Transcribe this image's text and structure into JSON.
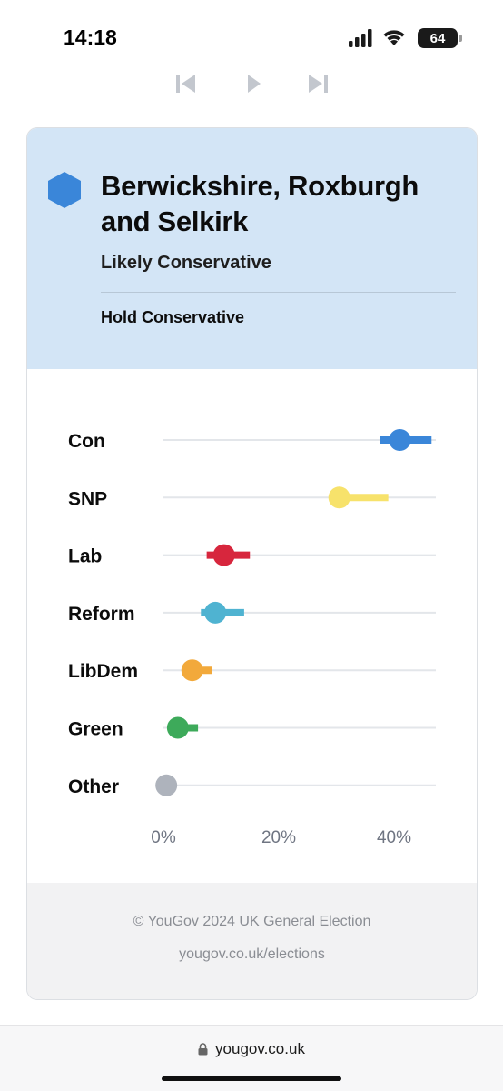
{
  "status_bar": {
    "time": "14:18",
    "battery": "64"
  },
  "controls": {
    "first_icon": "skip-to-first-icon",
    "play_icon": "play-icon",
    "last_icon": "skip-to-last-icon"
  },
  "header": {
    "title": "Berwickshire, Roxburgh and Selkirk",
    "forecast": "Likely Conservative",
    "result": "Hold Conservative",
    "icon": "hexagon-icon",
    "icon_color": "#3a86d9",
    "background": "#d3e5f6"
  },
  "chart_data": {
    "type": "scatter",
    "categories": [
      "Con",
      "SNP",
      "Lab",
      "Reform",
      "LibDem",
      "Green",
      "Other"
    ],
    "series": [
      {
        "name": "Con",
        "estimate": 41,
        "low": 37.5,
        "high": 46.5,
        "color": "#3a86d9"
      },
      {
        "name": "SNP",
        "estimate": 30.5,
        "low": 30.5,
        "high": 39,
        "color": "#f7e26b"
      },
      {
        "name": "Lab",
        "estimate": 10.5,
        "low": 7.5,
        "high": 15,
        "color": "#d7263d"
      },
      {
        "name": "Reform",
        "estimate": 9,
        "low": 6.5,
        "high": 14,
        "color": "#4fb3d1"
      },
      {
        "name": "LibDem",
        "estimate": 5,
        "low": 5,
        "high": 8.5,
        "color": "#f2a93b"
      },
      {
        "name": "Green",
        "estimate": 2.5,
        "low": 2.5,
        "high": 6,
        "color": "#3daa5a"
      },
      {
        "name": "Other",
        "estimate": 0.5,
        "low": 0.5,
        "high": 0.5,
        "color": "#aeb3bc"
      }
    ],
    "xlim": [
      0,
      47
    ],
    "xticks": [
      "0%",
      "20%",
      "40%"
    ],
    "xtick_values": [
      0,
      20,
      40
    ],
    "grid": true
  },
  "footer": {
    "copyright": "© YouGov 2024 UK General Election",
    "link": "yougov.co.uk/elections"
  },
  "browser": {
    "url": "yougov.co.uk",
    "lock_icon": "lock-icon"
  }
}
